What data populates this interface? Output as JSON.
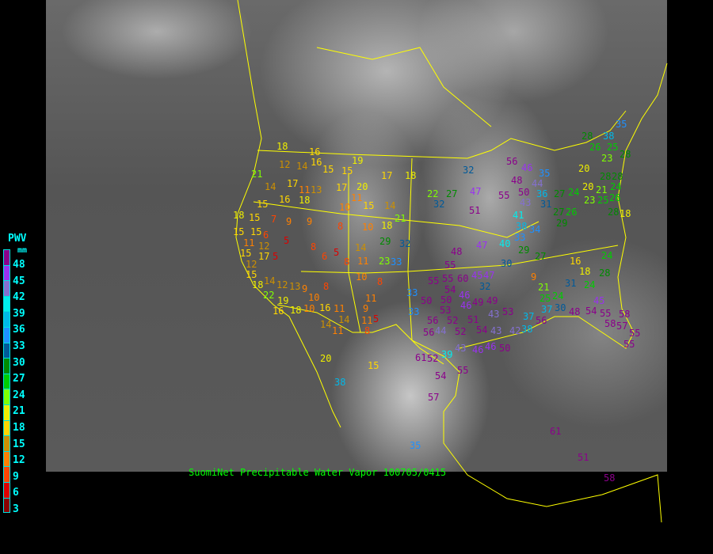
{
  "title": "SuomiNet Precipitable Water Vapor 100705/0415",
  "legend": {
    "title": "PWV",
    "unit": "mm",
    "ticks": [
      "48",
      "45",
      "42",
      "39",
      "36",
      "33",
      "30",
      "27",
      "24",
      "21",
      "18",
      "15",
      "12",
      "9",
      "6",
      "3"
    ],
    "colors": [
      "#8b008b",
      "#9a32f0",
      "#8470d0",
      "#00eeee",
      "#00b8e8",
      "#1e90ff",
      "#005a9a",
      "#008b00",
      "#00cd00",
      "#7fff00",
      "#eeee00",
      "#ffd700",
      "#cd9000",
      "#ff8000",
      "#ff4500",
      "#dd0000",
      "#8b0000"
    ]
  },
  "border_color": "#ffff00",
  "stations": [
    "18",
    "16",
    "19",
    "12",
    "14",
    "16",
    "15",
    "15",
    "21",
    "14",
    "17",
    "16",
    "18",
    "11",
    "13",
    "17",
    "20",
    "11",
    "17",
    "18",
    "10",
    "15",
    "14",
    "15",
    "18",
    "15",
    "7",
    "9",
    "9",
    "8",
    "10",
    "18",
    "21",
    "15",
    "15",
    "6",
    "5",
    "11",
    "12",
    "17",
    "15",
    "5",
    "12",
    "8",
    "5",
    "6",
    "8",
    "11",
    "14",
    "29",
    "32",
    "23",
    "33",
    "10",
    "8",
    "15",
    "18",
    "14",
    "12",
    "13",
    "22",
    "19",
    "16",
    "18",
    "10",
    "10",
    "9",
    "8",
    "16",
    "11",
    "11",
    "9",
    "14",
    "11",
    "5",
    "8",
    "14",
    "11",
    "20",
    "38",
    "15",
    "35",
    "33",
    "33",
    "50",
    "55",
    "22",
    "27",
    "32",
    "47",
    "51",
    "32",
    "56",
    "46",
    "48",
    "50",
    "55",
    "43",
    "44",
    "35",
    "36",
    "31",
    "27",
    "24",
    "27",
    "26",
    "29",
    "20",
    "20",
    "21",
    "23",
    "25",
    "24",
    "28",
    "26",
    "28",
    "18",
    "41",
    "38",
    "34",
    "33",
    "40",
    "47",
    "48",
    "29",
    "27",
    "30",
    "16",
    "18",
    "24",
    "28",
    "24",
    "31",
    "9",
    "21",
    "25",
    "24",
    "30",
    "37",
    "45",
    "48",
    "54",
    "55",
    "58",
    "58",
    "57",
    "55",
    "55",
    "45",
    "47",
    "32",
    "55",
    "55",
    "54",
    "60",
    "50",
    "53",
    "46",
    "46",
    "49",
    "49",
    "51",
    "43",
    "53",
    "37",
    "56",
    "52",
    "56",
    "44",
    "56",
    "52",
    "54",
    "43",
    "42",
    "38",
    "46",
    "50",
    "46",
    "39",
    "52",
    "61",
    "43",
    "54",
    "57",
    "55",
    "61",
    "51",
    "58",
    "35",
    "38",
    "28",
    "26",
    "25",
    "23",
    "28",
    "28"
  ]
}
